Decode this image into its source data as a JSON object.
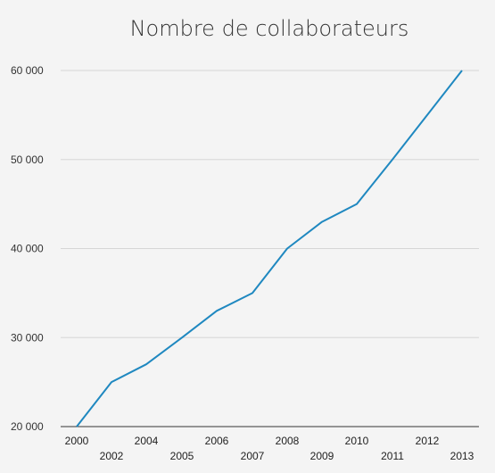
{
  "chart_data": {
    "type": "line",
    "title": "Nombre de collaborateurs",
    "xlabel": "",
    "ylabel": "",
    "x": [
      "2000",
      "2002",
      "2004",
      "2005",
      "2006",
      "2007",
      "2008",
      "2009",
      "2010",
      "2011",
      "2012",
      "2013"
    ],
    "series": [
      {
        "values": [
          20000,
          25000,
          27000,
          30000,
          33000,
          35000,
          40000,
          43000,
          45000,
          50000,
          55000,
          60000
        ]
      }
    ],
    "ylim": [
      20000,
      60000
    ],
    "yticks": [
      20000,
      30000,
      40000,
      50000,
      60000
    ],
    "ytick_labels": [
      "20 000",
      "30 000",
      "40 000",
      "50 000",
      "60 000"
    ],
    "grid": true,
    "colors": {
      "line": "#1f88c0",
      "background": "#f4f4f4"
    }
  }
}
